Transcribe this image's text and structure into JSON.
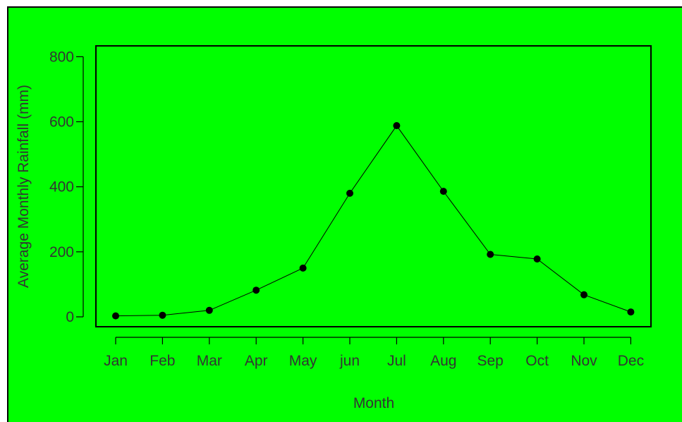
{
  "chart_data": {
    "type": "line",
    "categories": [
      "Jan",
      "Feb",
      "Mar",
      "Apr",
      "May",
      "jun",
      "Jul",
      "Aug",
      "Sep",
      "Oct",
      "Nov",
      "Dec"
    ],
    "values": [
      3,
      5,
      20,
      82,
      150,
      380,
      588,
      386,
      192,
      178,
      68,
      15
    ],
    "xlabel": "Month",
    "ylabel": "Average Monthly Rainfall (mm)",
    "yticks": [
      "0",
      "200",
      "400",
      "600",
      "800"
    ],
    "ylim": [
      -30,
      830
    ],
    "grid": false,
    "markers": "filled-circle",
    "colors": {
      "background": "#00ff00",
      "series": "#000000",
      "text": "#333333"
    }
  }
}
